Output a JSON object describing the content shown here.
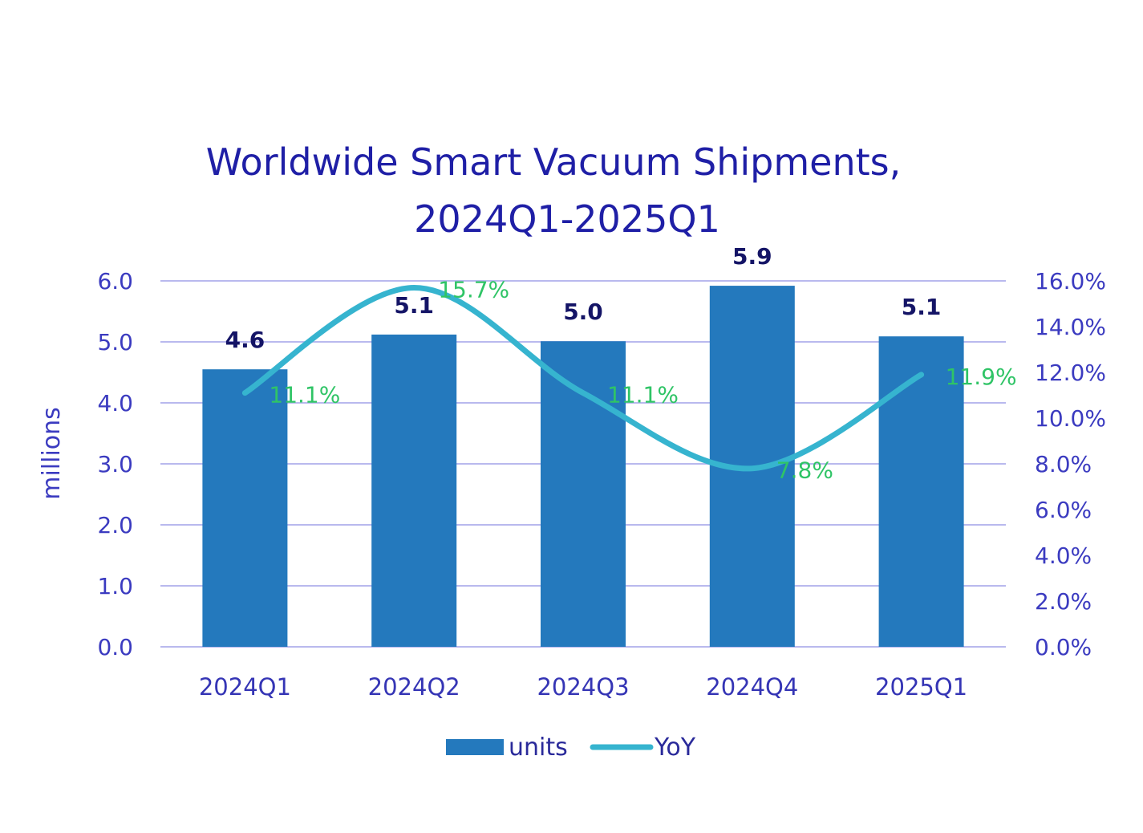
{
  "chart_data": {
    "type": "bar",
    "title_lines": [
      "Worldwide Smart Vacuum Shipments,",
      "2024Q1-2025Q1"
    ],
    "ylabel": "millions",
    "categories": [
      "2024Q1",
      "2024Q2",
      "2024Q3",
      "2024Q4",
      "2025Q1"
    ],
    "series": [
      {
        "name": "units",
        "type": "bar",
        "axis": "left",
        "color": "#2479bd",
        "values": [
          4.55,
          5.12,
          5.01,
          5.92,
          5.09
        ],
        "labels": [
          "4.6",
          "5.1",
          "5.0",
          "5.9",
          "5.1"
        ]
      },
      {
        "name": "YoY",
        "type": "line",
        "axis": "right",
        "color": "#36b4cf",
        "values": [
          11.1,
          15.7,
          11.1,
          7.8,
          11.9
        ],
        "labels": [
          "11.1%",
          "15.7%",
          "11.1%",
          "7.8%",
          "11.9%"
        ]
      }
    ],
    "y_left": {
      "range": [
        0,
        6
      ],
      "ticks": [
        "0.0",
        "1.0",
        "2.0",
        "3.0",
        "4.0",
        "5.0",
        "6.0"
      ]
    },
    "y_right": {
      "range": [
        0,
        16
      ],
      "ticks": [
        "0.0%",
        "2.0%",
        "4.0%",
        "6.0%",
        "8.0%",
        "10.0%",
        "12.0%",
        "14.0%",
        "16.0%"
      ]
    },
    "grid": true,
    "gridline_color": "#b9b9ee",
    "legend_position": "bottom",
    "bar_label_color": "#141466",
    "line_label_color": "#2fc466"
  }
}
